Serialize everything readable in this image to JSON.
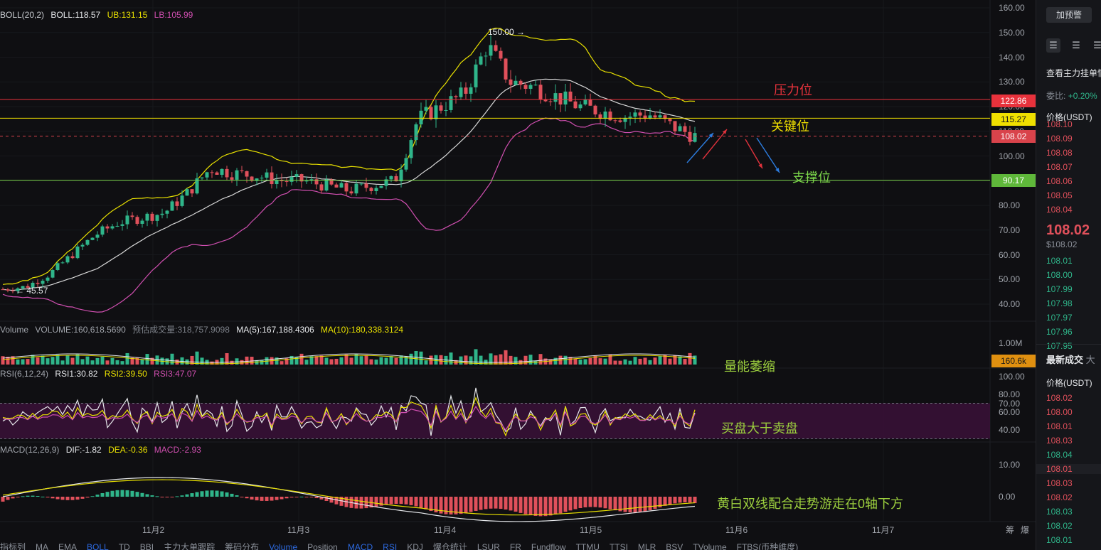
{
  "boll": {
    "name": "BOLL(20,2)",
    "mid": "BOLL:118.57",
    "ub": "UB:131.15",
    "lb": "LB:105.99"
  },
  "volume_header": {
    "name": "Volume",
    "volume": "VOLUME:160,618.5690",
    "predicted": "预估成交量:318,757.9098",
    "ma5": "MA(5):167,188.4306",
    "ma10": "MA(10):180,338.3124"
  },
  "rsi_header": {
    "name": "RSI(6,12,24)",
    "rsi1": "RSI1:30.82",
    "rsi2": "RSI2:39.50",
    "rsi3": "RSI3:47.07"
  },
  "macd_header": {
    "name": "MACD(12,26,9)",
    "dif": "DIF:-1.82",
    "dea": "DEA:-0.36",
    "macd": "MACD:-2.93"
  },
  "price_axis": [
    "160.00",
    "150.00",
    "140.00",
    "130.00",
    "120.00",
    "110.00",
    "100.00",
    "90.00",
    "80.00",
    "70.00",
    "60.00",
    "50.00",
    "40.00"
  ],
  "price_axis_values": [
    160,
    150,
    140,
    130,
    120,
    110,
    100,
    90,
    80,
    70,
    60,
    50,
    40
  ],
  "volume_axis": "1.00M",
  "rsi_axis": [
    "100.00",
    "80.00",
    "70.00",
    "60.00",
    "40.00"
  ],
  "rsi_axis_values": [
    100,
    80,
    70,
    60,
    40
  ],
  "macd_axis": [
    "10.00",
    "0.00"
  ],
  "macd_axis_values": [
    10,
    0
  ],
  "price_tags": {
    "resistance": "122.86",
    "key": "115.27",
    "current": "108.02",
    "support": "90.17",
    "volume": "160.6k"
  },
  "price_levels": {
    "resistance": 122.86,
    "key": 115.27,
    "current": 108.02,
    "support": 90.17
  },
  "high_marker": "150.00",
  "low_marker": "45.57",
  "annotations": {
    "resistance": "压力位",
    "key": "关键位",
    "support": "支撑位",
    "volume": "量能萎缩",
    "rsi": "买盘大于卖盘",
    "macd": "黄白双线配合走势游走在0轴下方"
  },
  "dates": [
    "11月2",
    "11月3",
    "11月4",
    "11月5",
    "11月6",
    "11月7"
  ],
  "corner_labels": [
    "筹",
    "爆"
  ],
  "bottom_toolbar": [
    "指标列",
    "MA",
    "EMA",
    "BOLL",
    "TD",
    "BBI",
    "主力大单跟踪",
    "筹码分布",
    "Volume",
    "Position",
    "MACD",
    "RSI",
    "KDJ",
    "爆仓统计",
    "LSUR",
    "FR",
    "Fundflow",
    "TTMU",
    "TTSI",
    "MLR",
    "BSV",
    "TVolume",
    "FTBS(币种维度)"
  ],
  "bottom_toolbar_active": [
    "BOLL",
    "Volume",
    "MACD",
    "RSI"
  ],
  "right_panel": {
    "alert_button": "加预警",
    "orderbook_link": "查看主力挂单情",
    "ratio_label": "委比:",
    "ratio_value": "+0.20%",
    "price_header": "价格(USDT)",
    "asks": [
      "108.10",
      "108.09",
      "108.08",
      "108.07",
      "108.06",
      "108.05",
      "108.04"
    ],
    "last_price": "108.02",
    "last_price_usd": "$108.02",
    "bids": [
      "108.01",
      "108.00",
      "107.99",
      "107.98",
      "107.97",
      "107.96",
      "107.95"
    ],
    "trades_title": "最新成交",
    "trades_tab2": "大",
    "trades_price_header": "价格(USDT)",
    "trades": [
      {
        "p": "108.02",
        "side": "ask"
      },
      {
        "p": "108.00",
        "side": "ask"
      },
      {
        "p": "108.01",
        "side": "ask"
      },
      {
        "p": "108.03",
        "side": "ask"
      },
      {
        "p": "108.04",
        "side": "bid"
      },
      {
        "p": "108.01",
        "side": "ask"
      },
      {
        "p": "108.03",
        "side": "ask"
      },
      {
        "p": "108.02",
        "side": "ask"
      },
      {
        "p": "108.03",
        "side": "bid"
      },
      {
        "p": "108.02",
        "side": "bid"
      },
      {
        "p": "108.01",
        "side": "bid"
      }
    ]
  },
  "colors": {
    "up": "#2fb58a",
    "down": "#e0505b",
    "boll_mid": "#d8d8d8",
    "boll_ub": "#e8e000",
    "boll_lb": "#d04fb0",
    "resistance": "#e8323c",
    "key": "#f0e000",
    "support": "#7bd64a",
    "current": "#d9434b",
    "rsi_band": "#3a1038",
    "accent_orange": "#e09010"
  },
  "chart_data": {
    "type": "candlestick",
    "title": "",
    "close_sample": [
      46,
      47,
      52,
      60,
      68,
      73,
      75,
      77,
      85,
      95,
      93,
      92,
      90,
      90,
      88,
      86,
      88,
      90,
      115,
      120,
      125,
      145,
      130,
      128,
      124,
      120,
      118,
      116,
      117,
      112,
      108
    ],
    "boll_current": {
      "mid": 118.57,
      "ub": 131.15,
      "lb": 105.99
    },
    "rsi_current": {
      "rsi1": 30.82,
      "rsi2": 39.5,
      "rsi3": 47.07
    },
    "macd_current": {
      "dif": -1.82,
      "dea": -0.36,
      "macd": -2.93
    }
  }
}
